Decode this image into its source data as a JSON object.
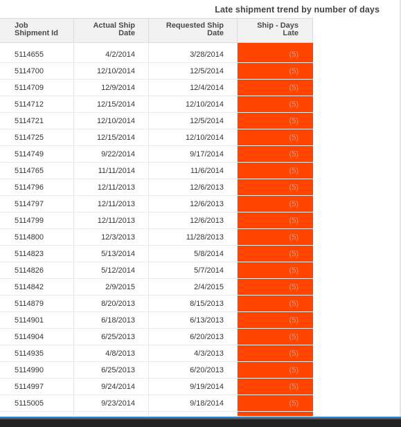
{
  "report": {
    "title": "Late shipment trend by number of days"
  },
  "table": {
    "headers": {
      "job_shipment_id": [
        "Job",
        "Shipment Id"
      ],
      "actual_ship_date": [
        "Actual Ship",
        "Date"
      ],
      "requested_ship_date": [
        "Requested Ship",
        "Date"
      ],
      "ship_days_late": [
        "Ship - Days",
        "Late"
      ]
    },
    "highlight_color": "#ff4500",
    "rows": [
      {
        "id": "5114655",
        "actual": "4/2/2014",
        "requested": "3/28/2014",
        "late": "(5)"
      },
      {
        "id": "5114700",
        "actual": "12/10/2014",
        "requested": "12/5/2014",
        "late": "(5)"
      },
      {
        "id": "5114709",
        "actual": "12/9/2014",
        "requested": "12/4/2014",
        "late": "(5)"
      },
      {
        "id": "5114712",
        "actual": "12/15/2014",
        "requested": "12/10/2014",
        "late": "(5)"
      },
      {
        "id": "5114721",
        "actual": "12/10/2014",
        "requested": "12/5/2014",
        "late": "(5)"
      },
      {
        "id": "5114725",
        "actual": "12/15/2014",
        "requested": "12/10/2014",
        "late": "(5)"
      },
      {
        "id": "5114749",
        "actual": "9/22/2014",
        "requested": "9/17/2014",
        "late": "(5)"
      },
      {
        "id": "5114765",
        "actual": "11/11/2014",
        "requested": "11/6/2014",
        "late": "(5)"
      },
      {
        "id": "5114796",
        "actual": "12/11/2013",
        "requested": "12/6/2013",
        "late": "(5)"
      },
      {
        "id": "5114797",
        "actual": "12/11/2013",
        "requested": "12/6/2013",
        "late": "(5)"
      },
      {
        "id": "5114799",
        "actual": "12/11/2013",
        "requested": "12/6/2013",
        "late": "(5)"
      },
      {
        "id": "5114800",
        "actual": "12/3/2013",
        "requested": "11/28/2013",
        "late": "(5)"
      },
      {
        "id": "5114823",
        "actual": "5/13/2014",
        "requested": "5/8/2014",
        "late": "(5)"
      },
      {
        "id": "5114826",
        "actual": "5/12/2014",
        "requested": "5/7/2014",
        "late": "(5)"
      },
      {
        "id": "5114842",
        "actual": "2/9/2015",
        "requested": "2/4/2015",
        "late": "(5)"
      },
      {
        "id": "5114879",
        "actual": "8/20/2013",
        "requested": "8/15/2013",
        "late": "(5)"
      },
      {
        "id": "5114901",
        "actual": "6/18/2013",
        "requested": "6/13/2013",
        "late": "(5)"
      },
      {
        "id": "5114904",
        "actual": "6/25/2013",
        "requested": "6/20/2013",
        "late": "(5)"
      },
      {
        "id": "5114935",
        "actual": "4/8/2013",
        "requested": "4/3/2013",
        "late": "(5)"
      },
      {
        "id": "5114990",
        "actual": "6/25/2013",
        "requested": "6/20/2013",
        "late": "(5)"
      },
      {
        "id": "5114997",
        "actual": "9/24/2014",
        "requested": "9/19/2014",
        "late": "(5)"
      },
      {
        "id": "5115005",
        "actual": "9/23/2014",
        "requested": "9/18/2014",
        "late": "(5)"
      }
    ]
  }
}
